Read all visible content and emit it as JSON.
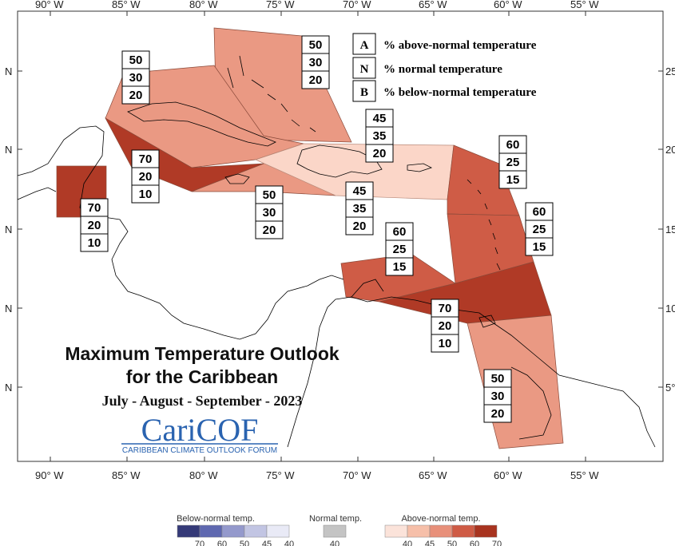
{
  "title": {
    "line1": "Maximum Temperature Outlook",
    "line2": "for the Caribbean",
    "period": "July - August - September - 2023"
  },
  "logo": {
    "main": "CariCOF",
    "subtitle": "CARIBBEAN CLIMATE OUTLOOK FORUM"
  },
  "axes": {
    "top_ticks": [
      "90° W",
      "85° W",
      "80° W",
      "75° W",
      "70° W",
      "65° W",
      "60° W",
      "55° W"
    ],
    "bottom_ticks": [
      "90° W",
      "85° W",
      "80° W",
      "75° W",
      "70° W",
      "65° W",
      "60° W",
      "55° W"
    ],
    "left_ticks": [
      "N",
      "N",
      "N",
      "N",
      "N"
    ],
    "right_ticks": [
      "25°",
      "20°",
      "15°",
      "10°",
      "5°"
    ]
  },
  "key": [
    {
      "letter": "A",
      "text": "% above-normal temperature"
    },
    {
      "letter": "N",
      "text": "% normal temperature"
    },
    {
      "letter": "B",
      "text": "% below-normal temperature"
    }
  ],
  "probability_boxes": [
    {
      "region": "bahamas",
      "values": [
        "50",
        "30",
        "20"
      ]
    },
    {
      "region": "cuba",
      "values": [
        "50",
        "30",
        "20"
      ]
    },
    {
      "region": "hispaniola-north",
      "values": [
        "45",
        "35",
        "20"
      ]
    },
    {
      "region": "leeward-islands",
      "values": [
        "60",
        "25",
        "15"
      ]
    },
    {
      "region": "cayman",
      "values": [
        "70",
        "20",
        "10"
      ]
    },
    {
      "region": "belize",
      "values": [
        "70",
        "20",
        "10"
      ]
    },
    {
      "region": "jamaica",
      "values": [
        "50",
        "30",
        "20"
      ]
    },
    {
      "region": "hispaniola-south",
      "values": [
        "45",
        "35",
        "20"
      ]
    },
    {
      "region": "windward-islands",
      "values": [
        "60",
        "25",
        "15"
      ]
    },
    {
      "region": "abc-islands",
      "values": [
        "60",
        "25",
        "15"
      ]
    },
    {
      "region": "trinidad",
      "values": [
        "70",
        "20",
        "10"
      ]
    },
    {
      "region": "guianas",
      "values": [
        "50",
        "30",
        "20"
      ]
    }
  ],
  "color_scale": {
    "below": {
      "label": "Below-normal temp.",
      "ticks": [
        "70",
        "60",
        "50",
        "45",
        "40"
      ],
      "colors": [
        "#353a78",
        "#5f68b0",
        "#9499cc",
        "#c2c5e3",
        "#e9eaf6"
      ]
    },
    "normal": {
      "label": "Normal temp.",
      "ticks": [
        "40"
      ],
      "colors": [
        "#c4c4c4"
      ]
    },
    "above": {
      "label": "Above-normal temp.",
      "ticks": [
        "40",
        "45",
        "50",
        "60",
        "70"
      ],
      "colors": [
        "#fbe3da",
        "#f6bfa9",
        "#e8907a",
        "#cf5b45",
        "#a8331f"
      ]
    }
  },
  "region_colors": {
    "p45": "#fbd6c8",
    "p50": "#ea9983",
    "p60": "#cf5c46",
    "p70": "#b03a26"
  }
}
